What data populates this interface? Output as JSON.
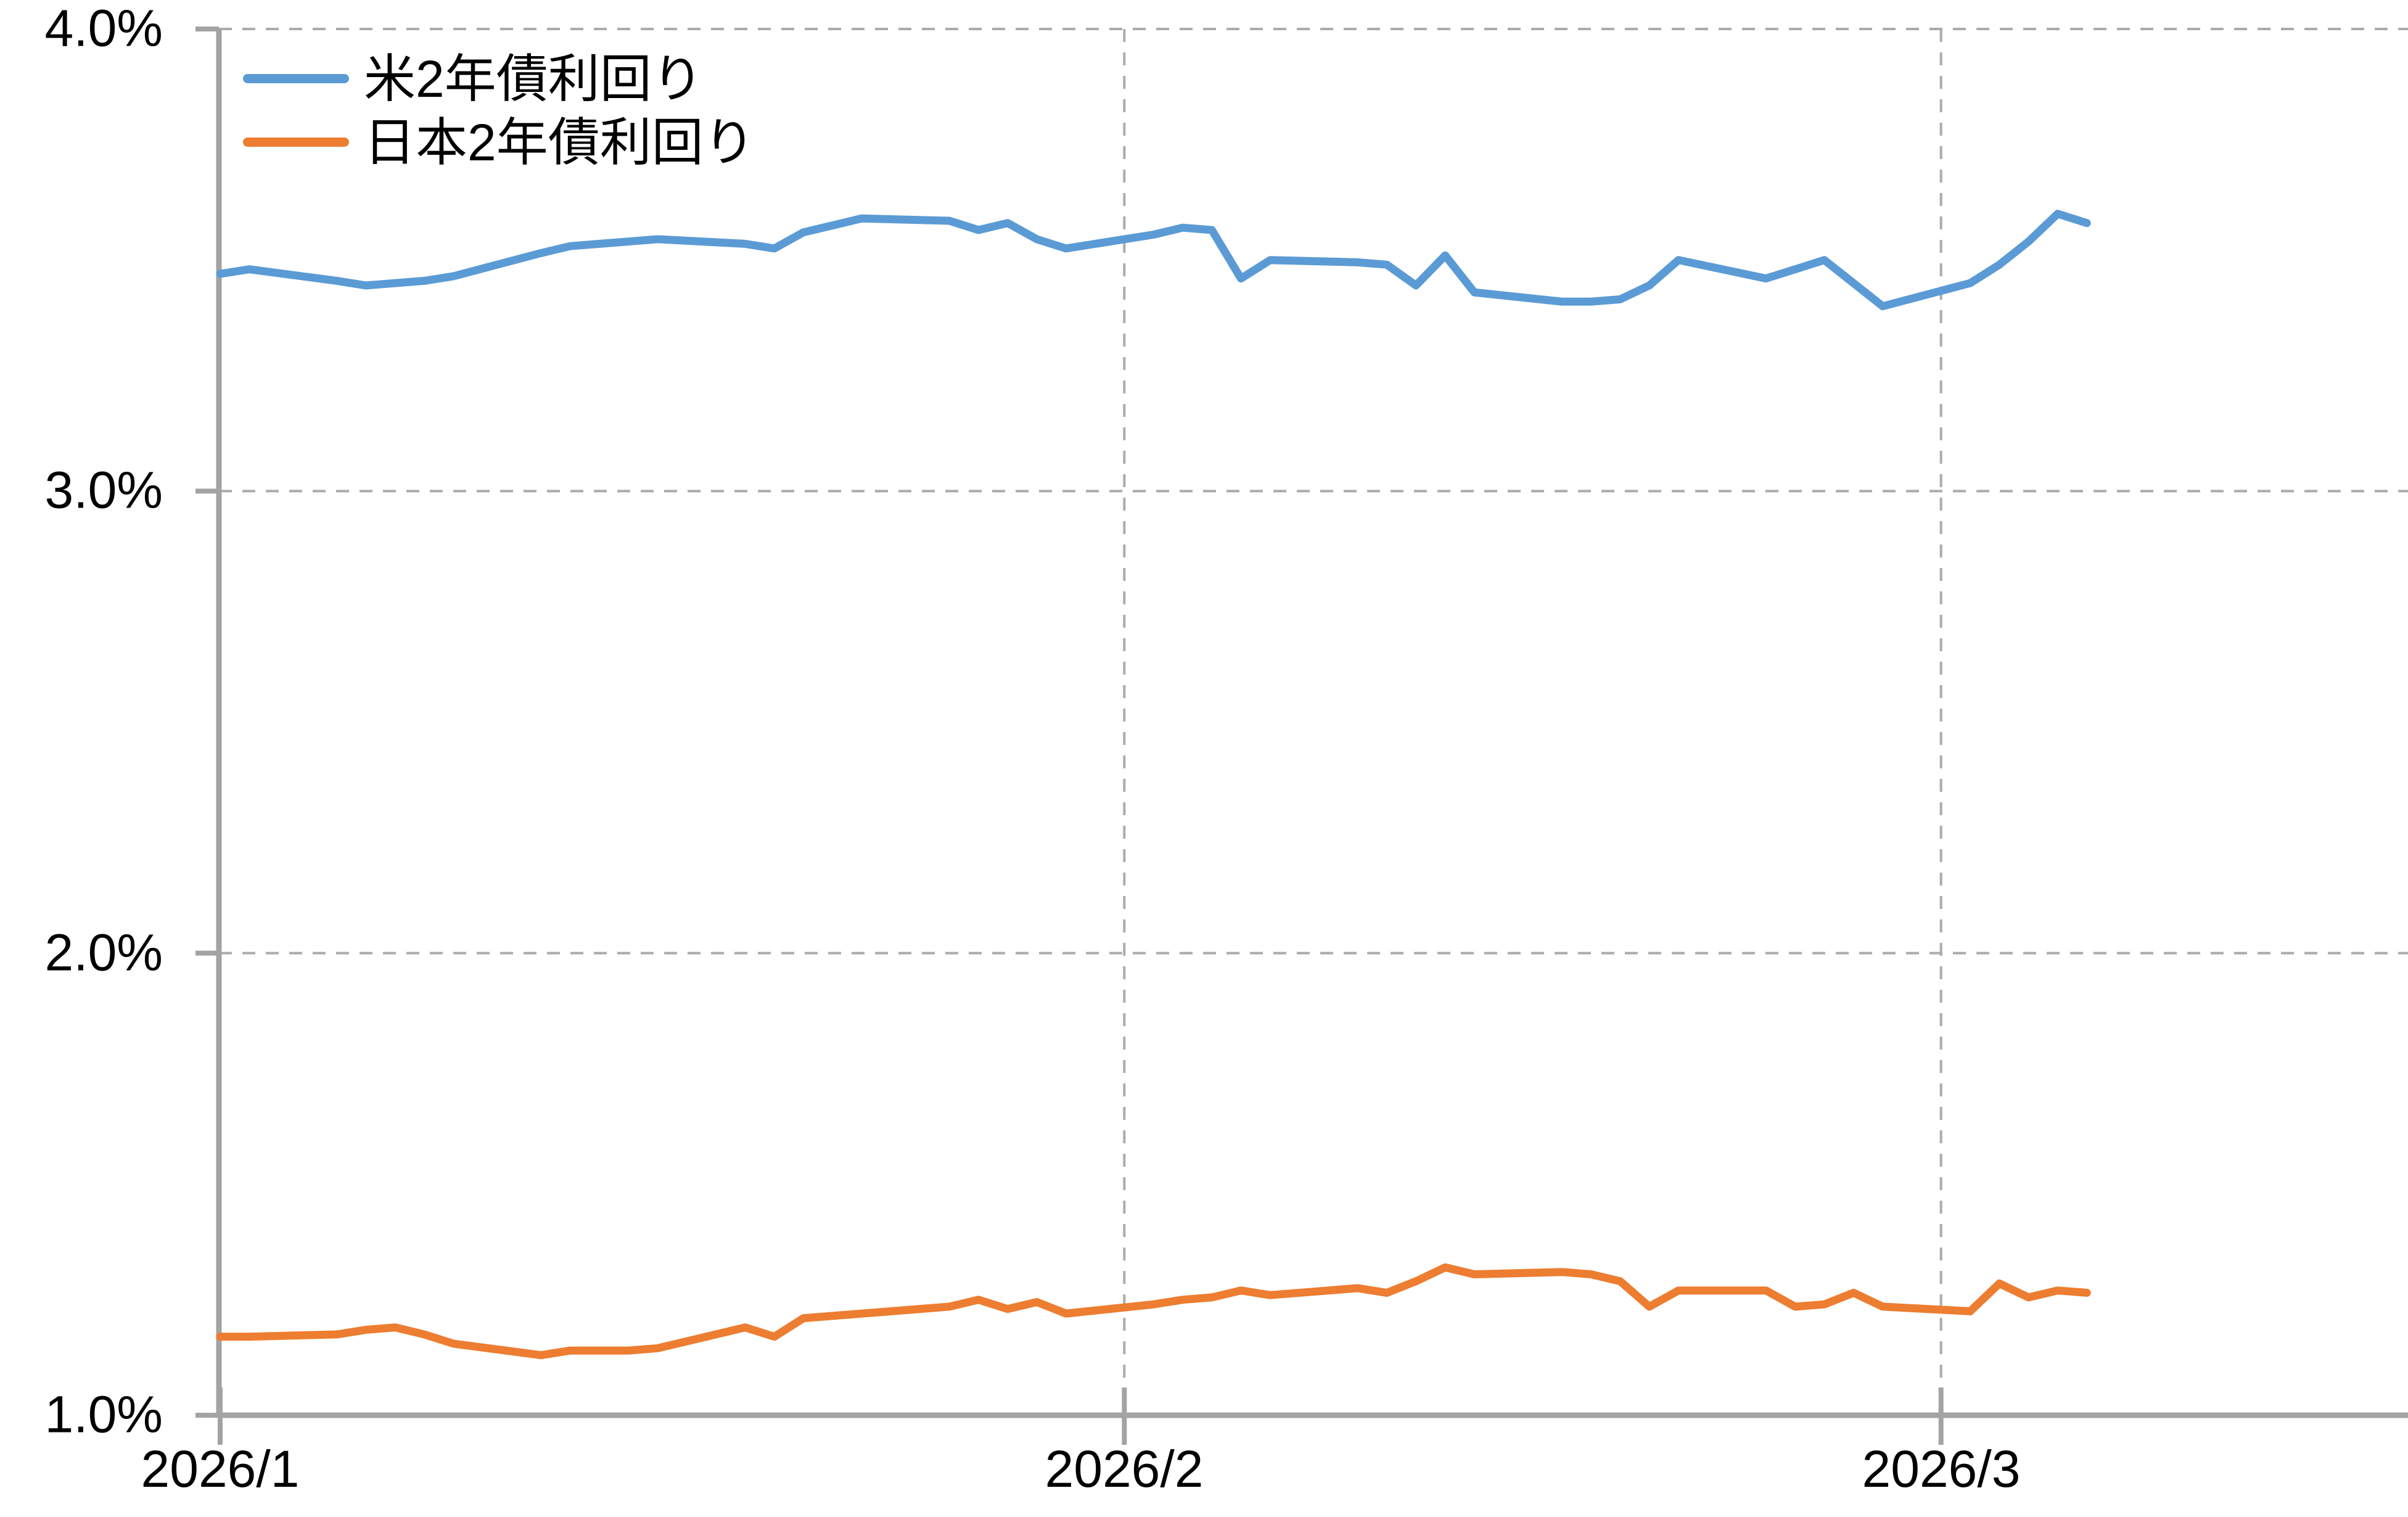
{
  "chart_data": {
    "type": "line",
    "title": "",
    "y_axis": {
      "min": 1.0,
      "max": 4.0,
      "unit": "%",
      "grid": "dashed",
      "ticks": [
        {
          "value": 4.0,
          "label": "4.0%"
        },
        {
          "value": 3.0,
          "label": "3.0%"
        },
        {
          "value": 2.0,
          "label": "2.0%"
        },
        {
          "value": 1.0,
          "label": "1.0%"
        }
      ]
    },
    "x_axis": {
      "scale": "date",
      "ticks": [
        {
          "date": "2026-01-01",
          "label": "2026/1"
        },
        {
          "date": "2026-02-01",
          "label": "2026/2"
        },
        {
          "date": "2026-03-01",
          "label": "2026/3"
        }
      ]
    },
    "x": [
      "2026-01-01",
      "2026-01-02",
      "2026-01-05",
      "2026-01-06",
      "2026-01-07",
      "2026-01-08",
      "2026-01-09",
      "2026-01-12",
      "2026-01-13",
      "2026-01-14",
      "2026-01-15",
      "2026-01-16",
      "2026-01-19",
      "2026-01-20",
      "2026-01-21",
      "2026-01-22",
      "2026-01-23",
      "2026-01-26",
      "2026-01-27",
      "2026-01-28",
      "2026-01-29",
      "2026-01-30",
      "2026-02-02",
      "2026-02-03",
      "2026-02-04",
      "2026-02-05",
      "2026-02-06",
      "2026-02-09",
      "2026-02-10",
      "2026-02-11",
      "2026-02-12",
      "2026-02-13",
      "2026-02-16",
      "2026-02-17",
      "2026-02-18",
      "2026-02-19",
      "2026-02-20",
      "2026-02-23",
      "2026-02-24",
      "2026-02-25",
      "2026-02-26",
      "2026-02-27",
      "2026-03-02",
      "2026-03-03",
      "2026-03-04",
      "2026-03-05",
      "2026-03-06"
    ],
    "series": [
      {
        "id": "us-2y",
        "name": "米2年債利回り",
        "color": "#5B9BD5",
        "values": [
          3.47,
          3.48,
          3.455,
          3.445,
          3.45,
          3.455,
          3.465,
          3.515,
          3.53,
          3.535,
          3.54,
          3.545,
          3.535,
          3.525,
          3.56,
          3.575,
          3.59,
          3.585,
          3.565,
          3.58,
          3.545,
          3.525,
          3.555,
          3.57,
          3.565,
          3.46,
          3.5,
          3.495,
          3.49,
          3.445,
          3.51,
          3.43,
          3.41,
          3.41,
          3.415,
          3.445,
          3.5,
          3.46,
          3.48,
          3.5,
          3.45,
          3.4,
          3.45,
          3.49,
          3.54,
          3.6,
          3.58
        ]
      },
      {
        "id": "japan-2y",
        "name": "日本2年債利回り",
        "color": "#ED7D31",
        "values": [
          1.17,
          1.17,
          1.175,
          1.185,
          1.19,
          1.175,
          1.155,
          1.13,
          1.14,
          1.14,
          1.14,
          1.145,
          1.19,
          1.17,
          1.21,
          1.215,
          1.22,
          1.235,
          1.25,
          1.23,
          1.245,
          1.22,
          1.24,
          1.25,
          1.255,
          1.27,
          1.26,
          1.275,
          1.265,
          1.29,
          1.32,
          1.305,
          1.31,
          1.305,
          1.29,
          1.235,
          1.27,
          1.27,
          1.235,
          1.24,
          1.265,
          1.235,
          1.225,
          1.285,
          1.255,
          1.27,
          1.265
        ]
      }
    ],
    "legend_position": "top-left-inside"
  }
}
